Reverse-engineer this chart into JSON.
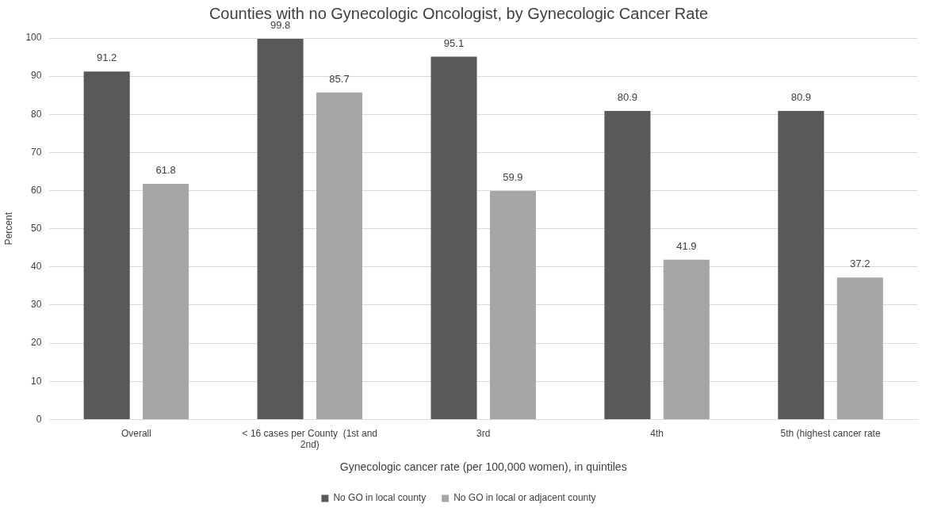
{
  "chart_data": {
    "type": "bar",
    "title": "Counties with no Gynecologic Oncologist, by Gynecologic Cancer Rate",
    "xlabel": "Gynecologic cancer rate (per 100,000 women), in quintiles",
    "ylabel": "Percent",
    "categories": [
      "Overall",
      "< 16 cases per County  (1st and 2nd)",
      "3rd",
      "4th",
      "5th (highest cancer rate"
    ],
    "series": [
      {
        "name": "No GO in local county",
        "color": "#595959",
        "values": [
          91.2,
          99.8,
          95.1,
          80.9,
          80.9
        ]
      },
      {
        "name": "No GO in local or adjacent county",
        "color": "#a6a6a6",
        "values": [
          61.8,
          85.7,
          59.9,
          41.9,
          37.2
        ]
      }
    ],
    "ylim": [
      0,
      100
    ],
    "yticks": [
      0,
      10,
      20,
      30,
      40,
      50,
      60,
      70,
      80,
      90,
      100
    ],
    "grid": "y",
    "legend": "bottom",
    "data_labels": true
  }
}
